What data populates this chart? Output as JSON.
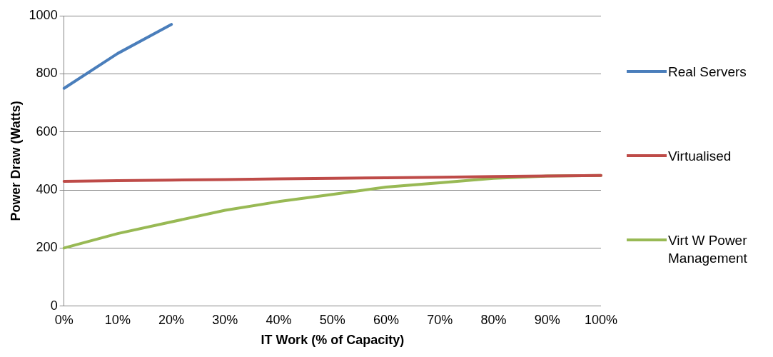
{
  "chart_data": {
    "type": "line",
    "xlabel": "IT Work (% of Capacity)",
    "ylabel": "Power Draw (Watts)",
    "categories": [
      "0%",
      "10%",
      "20%",
      "30%",
      "40%",
      "50%",
      "60%",
      "70%",
      "80%",
      "90%",
      "100%"
    ],
    "series": [
      {
        "name": "Real Servers",
        "color": "#4a7ebb",
        "values": [
          750,
          870,
          970,
          null,
          null,
          null,
          null,
          null,
          null,
          null,
          null
        ]
      },
      {
        "name": "Virtualised",
        "color": "#be4b48",
        "values": [
          430,
          432,
          434,
          436,
          438,
          440,
          442,
          444,
          446,
          448,
          450
        ]
      },
      {
        "name": "Virt W Power Management",
        "color": "#98b954",
        "values": [
          200,
          250,
          290,
          330,
          360,
          385,
          410,
          425,
          440,
          448,
          450
        ]
      }
    ],
    "ylim": [
      0,
      1000
    ],
    "yticks": [
      0,
      200,
      400,
      600,
      800,
      1000
    ],
    "grid": "y",
    "legend": "right",
    "marker": "none",
    "line_style": "solid"
  }
}
